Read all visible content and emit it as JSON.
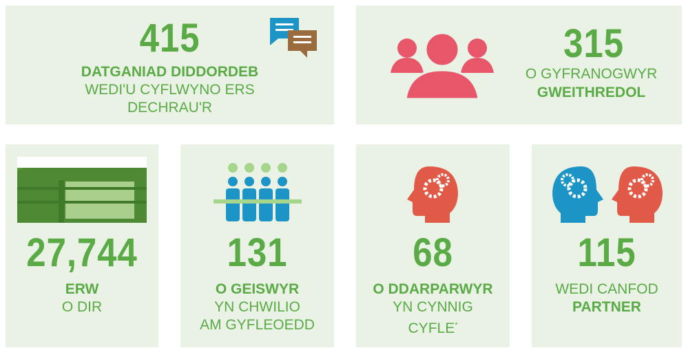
{
  "panels": [
    {
      "number": "415",
      "lines": [
        "DATGANIAD DIDDORDEB",
        "WEDI'U CYFLWYNO ERS",
        "DECHRAU'R"
      ]
    },
    {
      "number": "315",
      "lines": [
        "O GYFRANOGWYR",
        "GWEITHREDOL"
      ]
    },
    {
      "number": "27,744",
      "lines": [
        "ERW",
        "O DIR"
      ]
    },
    {
      "number": "131",
      "lines": [
        "O GEISWYR",
        "YN CHWILIO",
        "AM GYFLEOEDD"
      ]
    },
    {
      "number": "68",
      "lines": [
        "O DDARPARWYR",
        "YN CYNNIG",
        "CYFLE"
      ],
      "footnote_mark": "*"
    },
    {
      "number": "115",
      "lines": [
        "WEDI CANFOD",
        "PARTNER"
      ]
    }
  ]
}
